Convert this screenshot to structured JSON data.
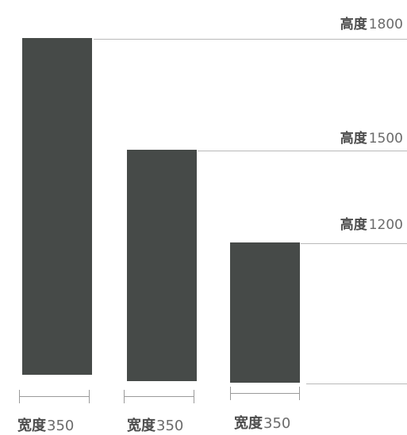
{
  "colors": {
    "bar": "#464a48",
    "guide": "#b9b9b9",
    "dimension": "#9a9a9a",
    "text": "#6b6b6b"
  },
  "columns": [
    {
      "height_label": "高度",
      "height_value": "1800",
      "width_label": "宽度",
      "width_value": "350"
    },
    {
      "height_label": "高度",
      "height_value": "1500",
      "width_label": "宽度",
      "width_value": "350"
    },
    {
      "height_label": "高度",
      "height_value": "1200",
      "width_label": "宽度",
      "width_value": "350"
    }
  ]
}
